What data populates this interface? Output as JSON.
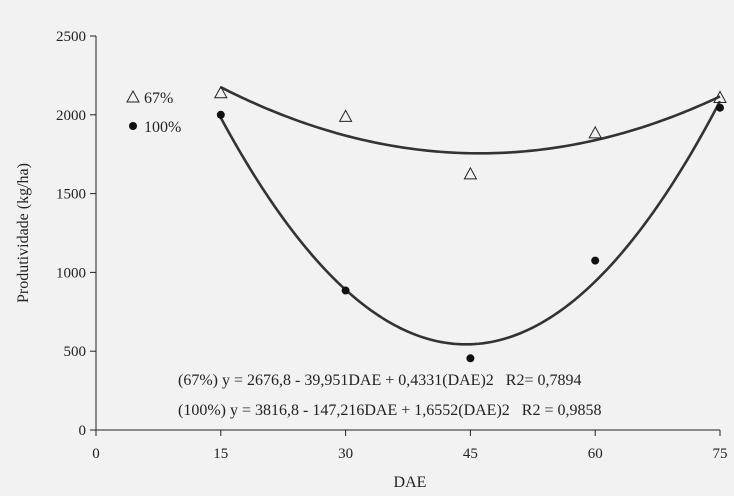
{
  "chart_data": {
    "type": "scatter",
    "xlabel": "DAE",
    "ylabel": "Produtividade (kg/ha)",
    "xlim": [
      0,
      75
    ],
    "ylim": [
      0,
      2500
    ],
    "xticks": [
      0,
      15,
      30,
      45,
      60,
      75
    ],
    "yticks": [
      0,
      500,
      1000,
      1500,
      2000,
      2500
    ],
    "grid": false,
    "legend_position": "left",
    "series": [
      {
        "name": "67%",
        "marker": "triangle-open",
        "x": [
          15,
          30,
          45,
          60,
          75
        ],
        "y": [
          2140,
          1990,
          1625,
          1885,
          2110
        ],
        "fit": {
          "a": 2676.8,
          "b": -39.951,
          "c": 0.4331
        }
      },
      {
        "name": "100%",
        "marker": "circle-filled",
        "x": [
          15,
          30,
          45,
          60,
          75
        ],
        "y": [
          2000,
          885,
          455,
          1075,
          2045
        ],
        "fit": {
          "a": 3816.8,
          "b": -147.216,
          "c": 1.6552
        }
      }
    ],
    "annotations": [
      "(67%) y = 2676,8 - 39,951DAE + 0,4331(DAE)2   R2= 0,7894",
      "(100%) y = 3816,8 - 147,216DAE + 1,6552(DAE)2   R2 = 0,9858"
    ]
  }
}
